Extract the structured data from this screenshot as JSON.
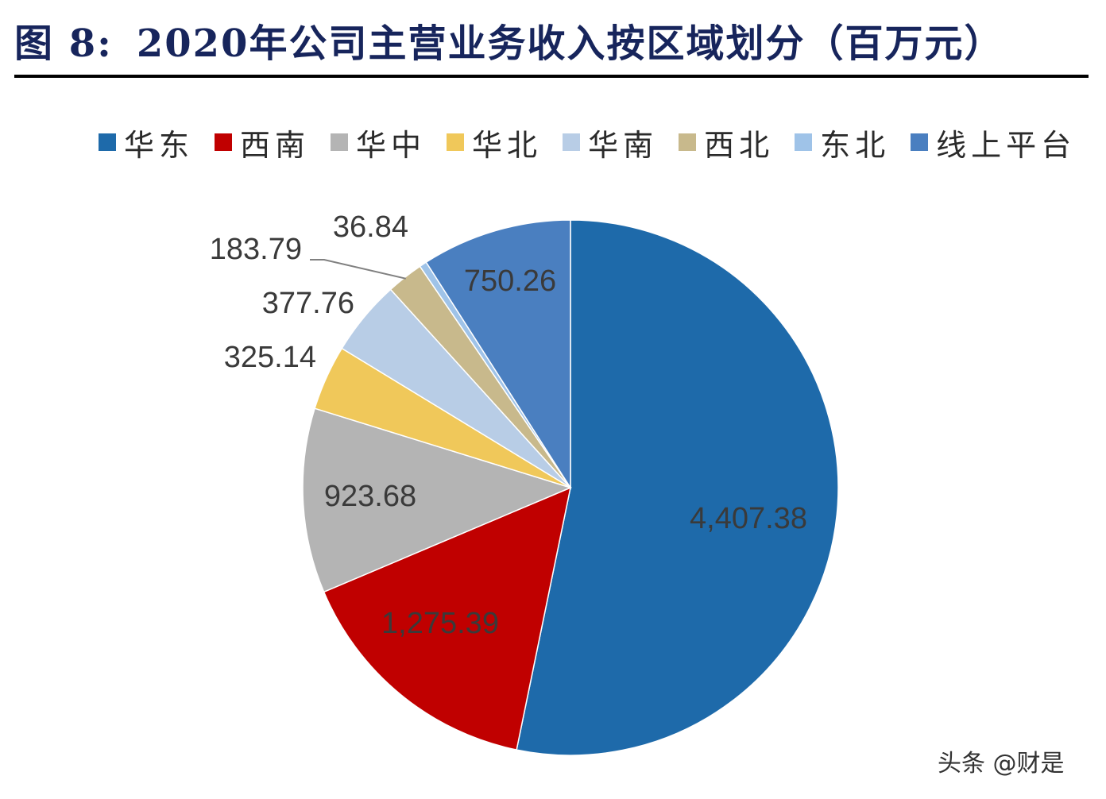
{
  "title": {
    "label": "图 8:",
    "text": "2020年公司主营业务收入按区域划分（百万元）"
  },
  "chart_data": {
    "type": "pie",
    "title": "2020年公司主营业务收入按区域划分（百万元）",
    "unit": "百万元",
    "categories": [
      "华东",
      "西南",
      "华中",
      "华北",
      "华南",
      "西北",
      "东北",
      "线上平台"
    ],
    "values": [
      4407.38,
      1275.39,
      923.68,
      325.14,
      377.76,
      183.79,
      36.84,
      750.26
    ],
    "value_labels": [
      "4,407.38",
      "1,275.39",
      "923.68",
      "325.14",
      "377.76",
      "183.79",
      "36.84",
      "750.26"
    ],
    "colors": [
      "#1e6aaa",
      "#c00000",
      "#b4b4b4",
      "#f0c85a",
      "#b8cde6",
      "#c8b98c",
      "#9fc3e8",
      "#4a7fc0"
    ],
    "legend_position": "top",
    "start_angle_deg": 0,
    "direction": "clockwise"
  },
  "watermark": "头条 @财是"
}
